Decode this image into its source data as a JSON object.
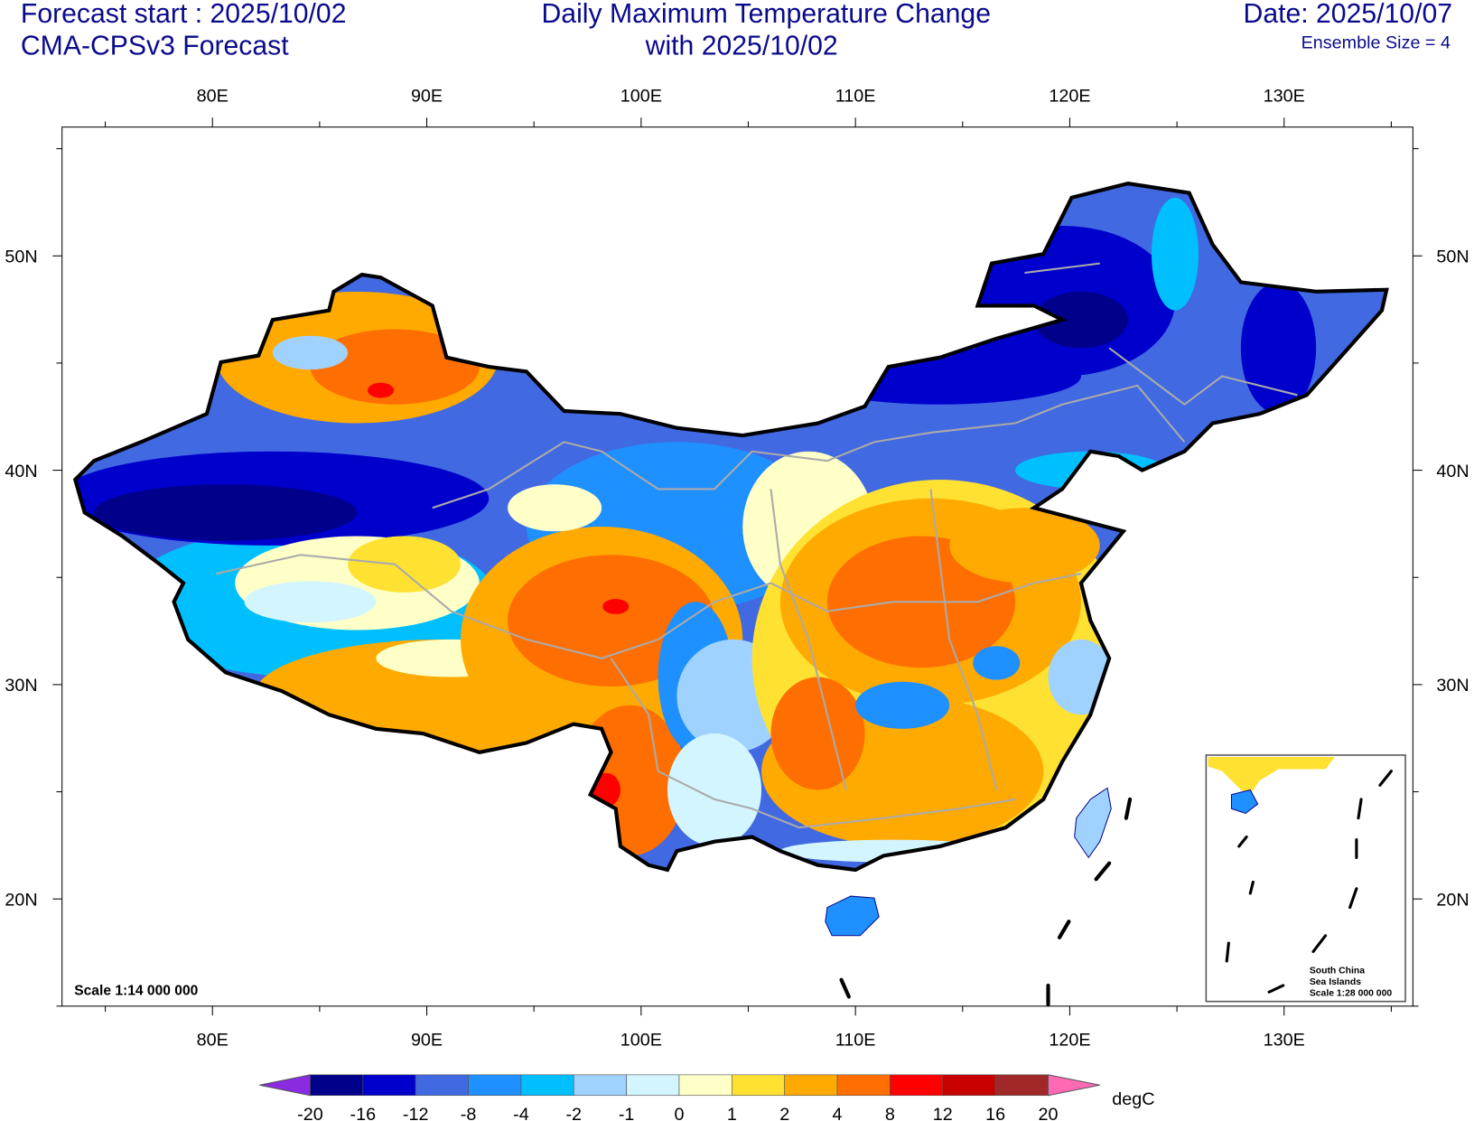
{
  "header": {
    "left_line1": "Forecast start : 2025/10/02",
    "left_line2": "CMA-CPSv3 Forecast",
    "center_line1": "Daily Maximum Temperature Change",
    "center_line2": "with 2025/10/02",
    "right_line1": "Date: 2025/10/07",
    "right_line2": "Ensemble Size = 4"
  },
  "axes": {
    "lon_labels": [
      "80E",
      "90E",
      "100E",
      "110E",
      "120E",
      "130E"
    ],
    "lat_labels": [
      "50N",
      "40N",
      "30N",
      "20N"
    ]
  },
  "map": {
    "scale_text": "Scale 1:14 000 000",
    "inset": {
      "line1": "South China",
      "line2": "Sea Islands",
      "line3": "Scale 1:28 000 000"
    }
  },
  "colorbar": {
    "unit": "degC",
    "labels": [
      "-20",
      "-16",
      "-12",
      "-8",
      "-4",
      "-2",
      "-1",
      "0",
      "1",
      "2",
      "4",
      "8",
      "12",
      "16",
      "20"
    ],
    "colors": [
      "#00008b",
      "#0000cd",
      "#4169e1",
      "#1e90ff",
      "#00bfff",
      "#a0d2ff",
      "#d2f5ff",
      "#ffffc8",
      "#ffe132",
      "#ffaa00",
      "#ff6e00",
      "#ff0000",
      "#c80000",
      "#a02828"
    ],
    "under_color": "#8a2be2",
    "over_color": "#ff69b4"
  }
}
